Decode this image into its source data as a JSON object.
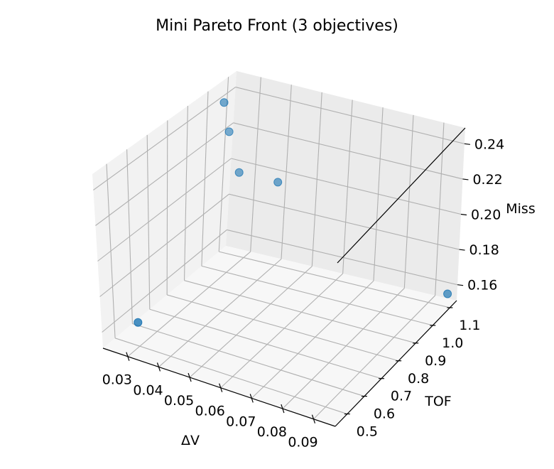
{
  "chart_data": {
    "type": "scatter",
    "projection": "3d",
    "title": "Mini Pareto Front (3 objectives)",
    "xlabel": "ΔV",
    "ylabel": "TOF",
    "zlabel": "Miss",
    "x_ticks": [
      "0.03",
      "0.04",
      "0.05",
      "0.06",
      "0.07",
      "0.08",
      "0.09"
    ],
    "y_ticks": [
      "0.5",
      "0.6",
      "0.7",
      "0.8",
      "0.9",
      "1.0",
      "1.1"
    ],
    "z_ticks": [
      "0.16",
      "0.18",
      "0.20",
      "0.22",
      "0.24"
    ],
    "grid": true,
    "pane_colors": {
      "left": "#f2f2f2",
      "back": "#ebebeb",
      "floor": "#f7f7f7",
      "grid": "#b0b0b0"
    },
    "marker_color": "#1f77b4",
    "series": [
      {
        "points": [
          {
            "x": 0.025,
            "y": 0.58,
            "z": 0.155
          },
          {
            "x": 0.025,
            "y": 1.07,
            "z": 0.222
          },
          {
            "x": 0.026,
            "y": 1.02,
            "z": 0.243
          },
          {
            "x": 0.042,
            "y": 1.06,
            "z": 0.202
          },
          {
            "x": 0.03,
            "y": 1.05,
            "z": 0.203
          },
          {
            "x": 0.095,
            "y": 1.12,
            "z": 0.156
          }
        ]
      }
    ]
  }
}
